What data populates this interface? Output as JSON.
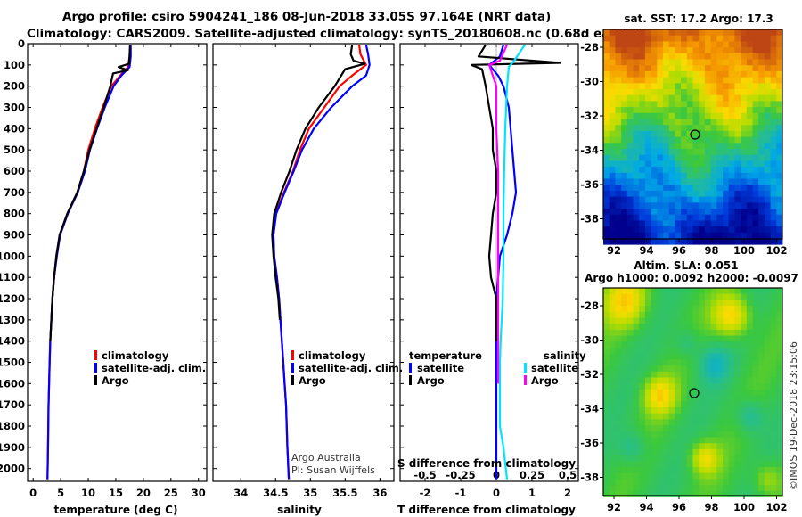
{
  "title": {
    "line1": "Argo profile: csiro 5904241_186 08-Jun-2018 33.05S 97.164E (NRT data)",
    "line2": "Climatology: CARS2009. Satellite-adjusted climatology: synTS_20180608.nc (0.68d earlier)"
  },
  "colors": {
    "climatology": "#ff0000",
    "satellite": "#0000ff",
    "argo": "#000000",
    "sal_satellite": "#00e5ff",
    "sal_argo": "#ff00ff"
  },
  "chart_data": [
    {
      "type": "line",
      "panel": "temperature",
      "xlabel": "temperature (deg C)",
      "ylabel": "depth",
      "xlim": [
        -1,
        31.5
      ],
      "ylim": [
        2060,
        0
      ],
      "xticks": [
        "0",
        "5",
        "10",
        "15",
        "20",
        "25",
        "30"
      ],
      "yticks": [
        "0",
        "100",
        "200",
        "300",
        "400",
        "500",
        "600",
        "700",
        "800",
        "900",
        "1000",
        "1100",
        "1200",
        "1300",
        "1400",
        "1500",
        "1600",
        "1700",
        "1800",
        "1900",
        "2000"
      ],
      "legend": [
        "climatology",
        "satellite-adj. clim.",
        "Argo"
      ],
      "series": [
        {
          "name": "climatology",
          "color": "#ff0000",
          "x": [
            17.6,
            17.5,
            17.2,
            15.8,
            14.2,
            12.6,
            11.2,
            10.0,
            9.2,
            8.0,
            6.2,
            4.8,
            4.2,
            3.8,
            3.5,
            3.3,
            3.1,
            3.0,
            2.9,
            2.8,
            2.7,
            2.6
          ],
          "y": [
            5,
            60,
            110,
            150,
            200,
            300,
            400,
            500,
            600,
            700,
            800,
            900,
            1000,
            1100,
            1200,
            1300,
            1400,
            1500,
            1600,
            1700,
            1900,
            2050
          ]
        },
        {
          "name": "satellite-adj. clim.",
          "color": "#0000ff",
          "x": [
            17.7,
            17.7,
            17.5,
            16.0,
            14.6,
            13.0,
            11.6,
            10.3,
            9.4,
            8.1,
            6.3,
            4.9,
            4.3,
            3.8,
            3.5,
            3.3,
            3.1,
            3.0,
            2.9,
            2.8,
            2.7,
            2.6
          ],
          "y": [
            5,
            60,
            110,
            150,
            200,
            300,
            400,
            500,
            600,
            700,
            800,
            900,
            1000,
            1100,
            1200,
            1300,
            1400,
            1500,
            1600,
            1700,
            1900,
            2050
          ]
        },
        {
          "name": "Argo",
          "color": "#000000",
          "x": [
            17.6,
            17.5,
            17.4,
            15.5,
            17.2,
            14.5,
            14.0,
            12.8,
            11.5,
            10.2,
            9.2,
            8.0,
            6.2,
            4.8,
            4.2,
            3.8,
            3.5,
            3.3,
            3.1
          ],
          "y": [
            5,
            60,
            95,
            110,
            125,
            140,
            200,
            300,
            400,
            500,
            600,
            700,
            800,
            900,
            1000,
            1100,
            1200,
            1300,
            1400
          ]
        }
      ]
    },
    {
      "type": "line",
      "panel": "salinity",
      "xlabel": "salinity",
      "xlim": [
        33.6,
        36.2
      ],
      "ylim": [
        2060,
        0
      ],
      "xticks": [
        "34",
        "34.5",
        "35",
        "35.5",
        "36"
      ],
      "legend": [
        "climatology",
        "satellite-adj. clim.",
        "Argo"
      ],
      "series": [
        {
          "name": "climatology",
          "color": "#ff0000",
          "x": [
            35.7,
            35.72,
            35.8,
            35.6,
            35.42,
            35.2,
            34.98,
            34.85,
            34.75,
            34.62,
            34.5,
            34.47,
            34.48,
            34.52,
            34.55,
            34.57,
            34.59,
            34.61,
            34.63,
            34.65,
            34.67,
            34.69
          ],
          "y": [
            5,
            50,
            100,
            150,
            200,
            300,
            400,
            500,
            600,
            700,
            800,
            900,
            1000,
            1100,
            1200,
            1300,
            1400,
            1500,
            1600,
            1700,
            1900,
            2050
          ]
        },
        {
          "name": "satellite-adj. clim.",
          "color": "#0000ff",
          "x": [
            35.8,
            35.83,
            35.85,
            35.8,
            35.6,
            35.3,
            35.05,
            34.88,
            34.76,
            34.63,
            34.51,
            34.47,
            34.48,
            34.52,
            34.55,
            34.57,
            34.59,
            34.61,
            34.63,
            34.65,
            34.67,
            34.69
          ],
          "y": [
            5,
            50,
            100,
            150,
            200,
            300,
            400,
            500,
            600,
            700,
            800,
            900,
            1000,
            1100,
            1200,
            1300,
            1400,
            1500,
            1600,
            1700,
            1900,
            2050
          ]
        },
        {
          "name": "Argo",
          "color": "#000000",
          "x": [
            35.6,
            35.58,
            35.62,
            35.78,
            35.5,
            35.35,
            35.12,
            34.93,
            34.8,
            34.7,
            34.58,
            34.48,
            34.45,
            34.47,
            34.5,
            34.54,
            34.56
          ],
          "y": [
            5,
            50,
            80,
            95,
            120,
            200,
            300,
            400,
            500,
            600,
            700,
            800,
            900,
            1000,
            1100,
            1200,
            1300
          ]
        }
      ]
    },
    {
      "type": "line",
      "panel": "difference",
      "xlabel": "T difference from climatology",
      "xlabel_top": "S difference from climatology",
      "xlim": [
        -2.7,
        2.3
      ],
      "ylim": [
        2060,
        0
      ],
      "xticks": [
        "-2",
        "-1",
        "0",
        "1",
        "2"
      ],
      "xticks_sal": [
        "-0.5",
        "-0.25",
        "0",
        "0.25",
        "0.5"
      ],
      "legend_temperature": {
        "title": "temperature",
        "items": [
          "satellite",
          "Argo"
        ]
      },
      "legend_salinity": {
        "title": "salinity",
        "items": [
          "satellite",
          "Argo"
        ]
      },
      "series": [
        {
          "name": "T satellite",
          "color": "#0000ff",
          "x": [
            0.2,
            0.1,
            -0.2,
            0.05,
            0.2,
            0.35,
            0.4,
            0.45,
            0.5,
            0.55,
            0.45,
            0.3,
            0.1,
            0.05,
            0.0,
            0.0,
            0.0,
            0.0,
            0.0
          ],
          "y": [
            5,
            60,
            100,
            150,
            200,
            300,
            400,
            500,
            600,
            700,
            800,
            900,
            1000,
            1100,
            1200,
            1400,
            1600,
            1800,
            2050
          ]
        },
        {
          "name": "T Argo",
          "color": "#000000",
          "x": [
            -0.3,
            -0.5,
            1.8,
            -0.7,
            -0.4,
            -0.3,
            -0.2,
            -0.1,
            -0.1,
            0.0,
            0.0,
            -0.1,
            -0.2,
            -0.15,
            0.0,
            0.0,
            0.0
          ],
          "y": [
            5,
            60,
            90,
            100,
            120,
            200,
            300,
            400,
            500,
            600,
            700,
            800,
            1000,
            1100,
            1200,
            1300,
            1400
          ]
        },
        {
          "name": "S satellite",
          "color": "#00e5ff",
          "x": [
            0.8,
            0.5,
            0.35,
            0.3,
            0.25,
            0.22,
            0.2,
            0.2,
            0.18,
            0.15,
            0.12,
            0.1,
            0.1,
            0.1,
            0.1,
            0.2,
            0.3
          ],
          "y": [
            5,
            80,
            110,
            200,
            400,
            600,
            800,
            1000,
            1200,
            1300,
            1400,
            1500,
            1600,
            1700,
            1800,
            1900,
            2050
          ]
        },
        {
          "name": "S Argo",
          "color": "#ff00ff",
          "x": [
            0.3,
            0.1,
            -0.2,
            0.0,
            0.0,
            0.05,
            0.05,
            0.05,
            0.05,
            0.05,
            0.05
          ],
          "y": [
            5,
            80,
            100,
            200,
            400,
            600,
            800,
            1000,
            1200,
            1400,
            1600
          ]
        }
      ]
    }
  ],
  "maps": {
    "sst": {
      "title": "sat. SST: 17.2 Argo: 17.3",
      "lon_ticks": [
        "92",
        "94",
        "96",
        "98",
        "100",
        "102"
      ],
      "lat_ticks": [
        "-28",
        "-30",
        "-32",
        "-34",
        "-36",
        "-38"
      ],
      "marker": {
        "lon": 97.16,
        "lat": -33.05
      }
    },
    "sla": {
      "title1": "Altim. SLA: 0.051",
      "title2": "Argo h1000: 0.0092 h2000: -0.0097",
      "lon_ticks": [
        "92",
        "94",
        "96",
        "98",
        "100",
        "102"
      ],
      "lat_ticks": [
        "-28",
        "-30",
        "-32",
        "-34",
        "-36",
        "-38"
      ],
      "marker": {
        "lon": 97.16,
        "lat": -33.05
      }
    }
  },
  "credit": {
    "line1": "Argo Australia",
    "line2": "PI: Susan Wijffels",
    "imos": "©IMOS 19-Dec-2018 23:15:06"
  }
}
